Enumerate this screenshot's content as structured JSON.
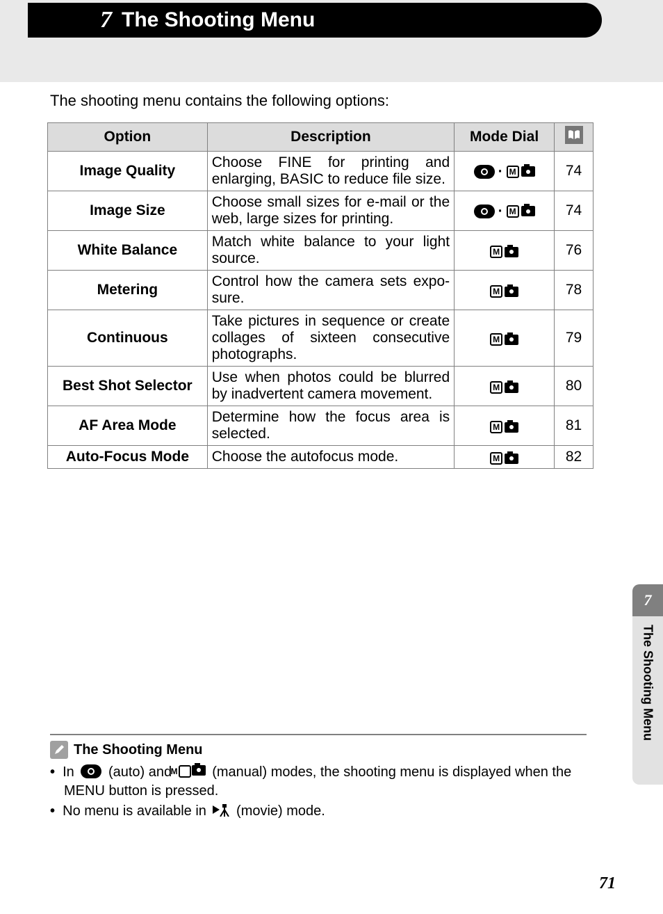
{
  "header": {
    "chapter_number": "7",
    "chapter_title": "The Shooting Menu"
  },
  "intro": "The shooting menu contains the following options:",
  "table": {
    "headers": {
      "option": "Option",
      "description": "Description",
      "mode_dial": "Mode Dial"
    },
    "header_bg": "#dcdcdc",
    "border_color": "#808080",
    "rows": [
      {
        "option": "Image Quality",
        "description": "Choose FINE for printing and enlarging, BASIC to reduce file size.",
        "mode": "both",
        "page": "74"
      },
      {
        "option": "Image Size",
        "description": "Choose small sizes for e-mail or the web, large sizes for printing.",
        "mode": "both",
        "page": "74"
      },
      {
        "option": "White Balance",
        "description": "Match white balance to your light source.",
        "mode": "manual",
        "page": "76"
      },
      {
        "option": "Metering",
        "description": "Control how the camera sets expo­sure.",
        "mode": "manual",
        "page": "78"
      },
      {
        "option": "Continuous",
        "description": "Take pictures in sequence or create collages of sixteen consecutive photographs.",
        "mode": "manual",
        "page": "79"
      },
      {
        "option": "Best Shot Selector",
        "description": "Use when photos could be blurred by inadvertent camera movement.",
        "mode": "manual",
        "page": "80"
      },
      {
        "option": "AF Area Mode",
        "description": "Determine how the focus area is selected.",
        "mode": "manual",
        "page": "81"
      },
      {
        "option": "Auto-Focus Mode",
        "description": "Choose the autofocus mode.",
        "mode": "manual",
        "page": "82"
      }
    ]
  },
  "side_tab": {
    "number": "7",
    "label": "The Shooting Menu",
    "dark_bg": "#808080",
    "light_bg": "#e2e2e2"
  },
  "note": {
    "title": "The Shooting Menu",
    "line1_a": "In",
    "line1_b": "(auto) and",
    "line1_c": "(manual) modes, the shooting menu is displayed when the MENU button is pressed.",
    "line2_a": "No menu is available in",
    "line2_b": "(movie) mode."
  },
  "page_number": "71",
  "icons": {
    "m_letter": "M",
    "page_ref_bg": "#767676",
    "pencil_bg": "#a0a0a0"
  }
}
